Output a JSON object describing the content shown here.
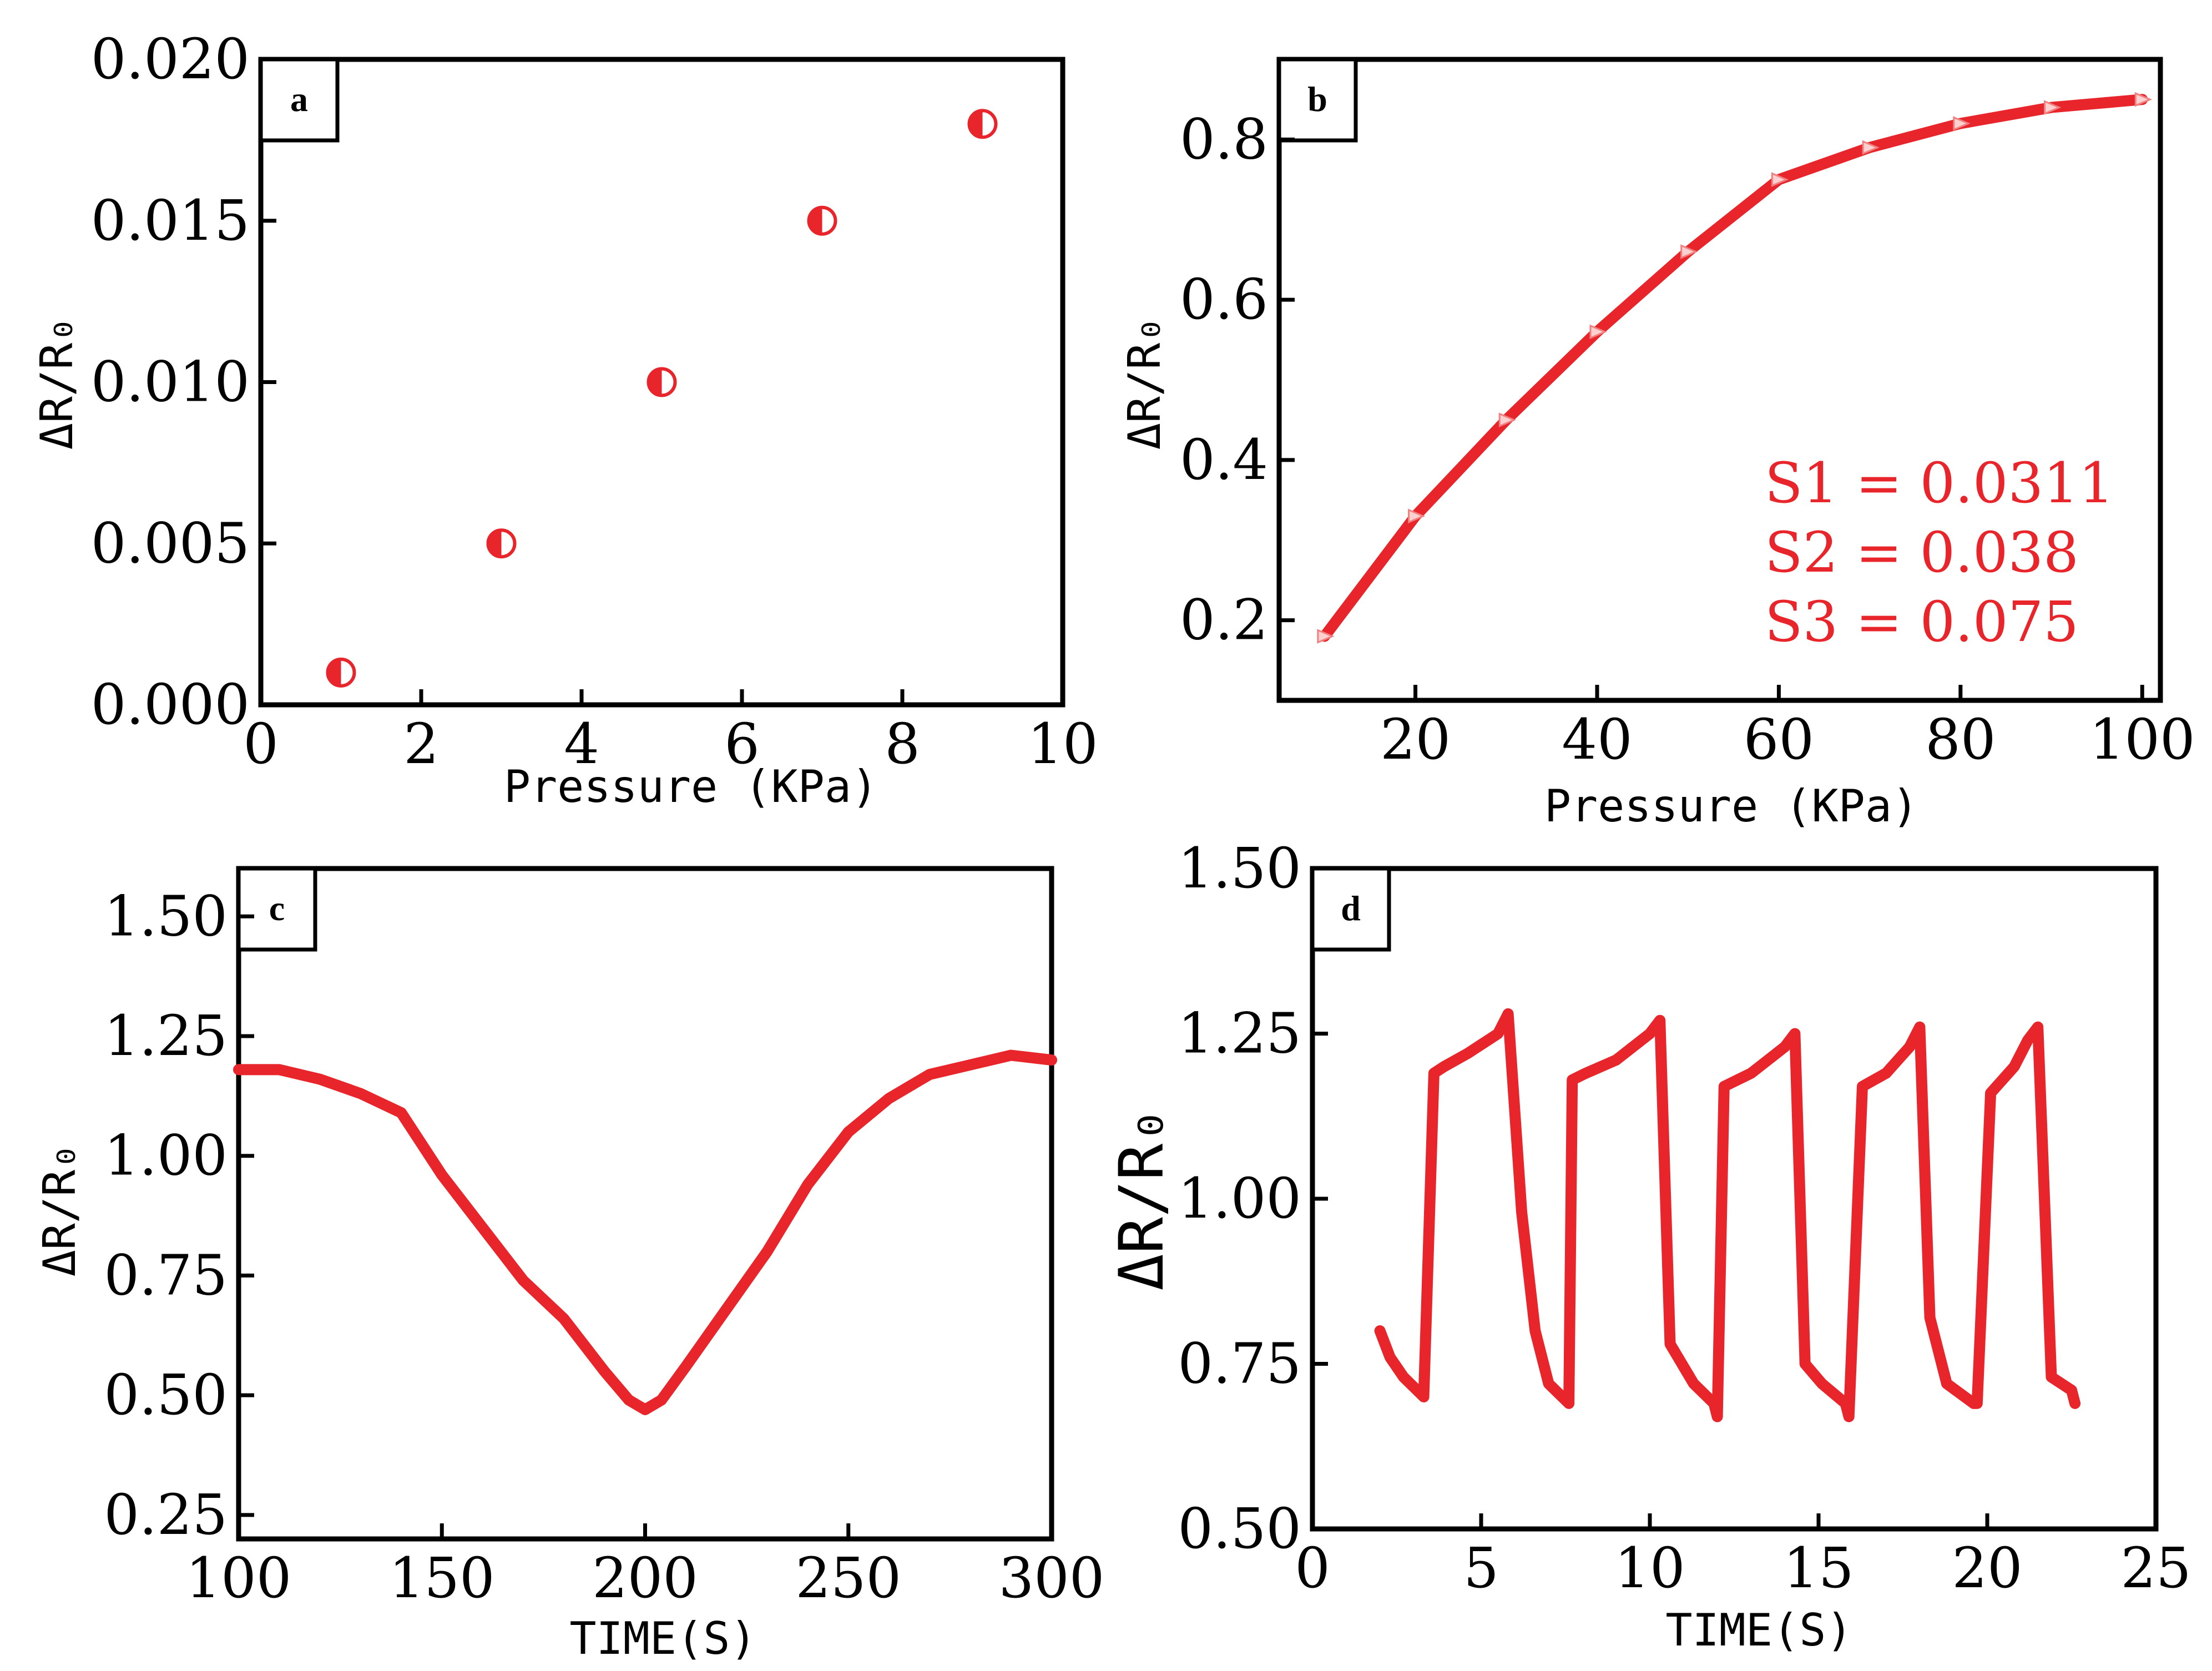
{
  "colors": {
    "series": "#e8252b",
    "axis": "#000000",
    "background": "#ffffff"
  },
  "chart_data": [
    {
      "panel": "a",
      "type": "scatter",
      "xlabel": "Pressure (KPa)",
      "ylabel": "ΔR/R₀",
      "xlim": [
        0,
        10
      ],
      "ylim": [
        0,
        0.02
      ],
      "xticks": [
        0,
        2,
        4,
        6,
        8,
        10
      ],
      "yticks": [
        0,
        0.005,
        0.01,
        0.015,
        0.02
      ],
      "xtick_labels": [
        "0",
        "2",
        "4",
        "6",
        "8",
        "10"
      ],
      "ytick_labels": [
        "0.000",
        "0.005",
        "0.010",
        "0.015",
        "0.020"
      ],
      "x": [
        1,
        3,
        5,
        7,
        9
      ],
      "y": [
        0.001,
        0.005,
        0.01,
        0.015,
        0.018
      ]
    },
    {
      "panel": "b",
      "type": "line",
      "xlabel": "Pressure (KPa)",
      "ylabel": "ΔR/R₀",
      "xlim": [
        5,
        102
      ],
      "ylim": [
        0.1,
        0.9
      ],
      "xticks": [
        20,
        40,
        60,
        80,
        100
      ],
      "yticks": [
        0.2,
        0.4,
        0.6,
        0.8
      ],
      "xtick_labels": [
        "20",
        "40",
        "60",
        "80",
        "100"
      ],
      "ytick_labels": [
        "0.2",
        "0.4",
        "0.6",
        "0.8"
      ],
      "x": [
        10,
        20,
        30,
        40,
        50,
        60,
        70,
        80,
        90,
        100
      ],
      "y": [
        0.18,
        0.33,
        0.45,
        0.56,
        0.66,
        0.75,
        0.79,
        0.82,
        0.84,
        0.85
      ],
      "annotations": [
        "S1 = 0.0311",
        "S2 = 0.038",
        "S3 = 0.075"
      ]
    },
    {
      "panel": "c",
      "type": "line",
      "xlabel": "TIME(S)",
      "ylabel": "ΔR/R₀",
      "xlim": [
        100,
        300
      ],
      "ylim": [
        0.2,
        1.6
      ],
      "xticks": [
        100,
        150,
        200,
        250,
        300
      ],
      "yticks": [
        0.25,
        0.5,
        0.75,
        1.0,
        1.25,
        1.5
      ],
      "xtick_labels": [
        "100",
        "150",
        "200",
        "250",
        "300"
      ],
      "ytick_labels": [
        "0.25",
        "0.50",
        "0.75",
        "1.00",
        "1.25",
        "1.50"
      ],
      "x": [
        100,
        110,
        120,
        130,
        140,
        150,
        160,
        170,
        180,
        190,
        196,
        200,
        204,
        210,
        220,
        230,
        240,
        250,
        260,
        270,
        280,
        290,
        300
      ],
      "y": [
        1.18,
        1.18,
        1.16,
        1.13,
        1.09,
        0.96,
        0.85,
        0.74,
        0.66,
        0.55,
        0.49,
        0.47,
        0.49,
        0.56,
        0.68,
        0.8,
        0.94,
        1.05,
        1.12,
        1.17,
        1.19,
        1.21,
        1.2
      ]
    },
    {
      "panel": "d",
      "type": "line",
      "xlabel": "TIME(S)",
      "ylabel": "ΔR/R₀",
      "xlim": [
        0,
        25
      ],
      "ylim": [
        0.5,
        1.5
      ],
      "xticks": [
        0,
        5,
        10,
        15,
        20,
        25
      ],
      "yticks": [
        0.5,
        0.75,
        1.0,
        1.25,
        1.5
      ],
      "xtick_labels": [
        "0",
        "5",
        "10",
        "15",
        "20",
        "25"
      ],
      "ytick_labels": [
        "0.50",
        "0.75",
        "1.00",
        "1.25",
        "1.50"
      ],
      "x": [
        2.0,
        2.3,
        2.7,
        3.3,
        3.6,
        3.9,
        4.6,
        5.5,
        5.8,
        6.2,
        6.6,
        7.0,
        7.6,
        7.7,
        8.1,
        9.0,
        10.0,
        10.3,
        10.6,
        11.3,
        11.9,
        12.0,
        12.2,
        13.0,
        14.0,
        14.3,
        14.6,
        15.1,
        15.8,
        15.9,
        16.3,
        17.0,
        17.7,
        18.0,
        18.3,
        18.8,
        19.6,
        19.7,
        20.1,
        20.8,
        21.2,
        21.5,
        21.9,
        22.5,
        22.6
      ],
      "y": [
        0.8,
        0.76,
        0.73,
        0.7,
        1.19,
        1.2,
        1.22,
        1.25,
        1.28,
        0.98,
        0.8,
        0.72,
        0.69,
        1.18,
        1.19,
        1.21,
        1.25,
        1.27,
        0.78,
        0.72,
        0.69,
        0.67,
        1.17,
        1.19,
        1.23,
        1.25,
        0.75,
        0.72,
        0.69,
        0.67,
        1.17,
        1.19,
        1.23,
        1.26,
        0.82,
        0.72,
        0.69,
        0.69,
        1.16,
        1.2,
        1.24,
        1.26,
        0.73,
        0.71,
        0.69
      ]
    }
  ]
}
